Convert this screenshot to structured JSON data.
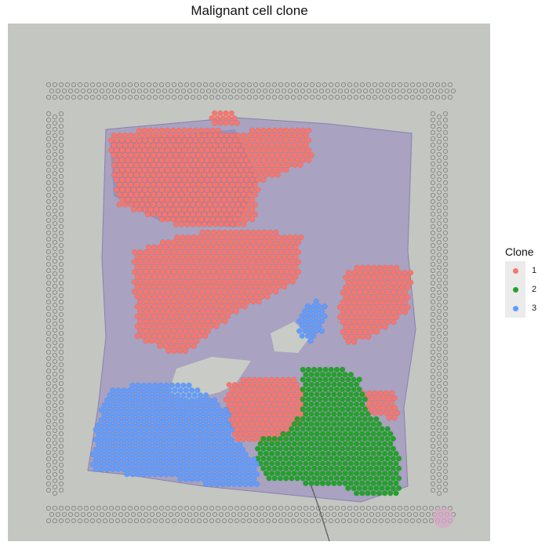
{
  "chart_data": {
    "type": "scatter",
    "title": "Malignant cell clone",
    "legend": {
      "title": "Clone",
      "position": "right",
      "entries": [
        {
          "label": "1",
          "color": "#F8766D"
        },
        {
          "label": "2",
          "color": "#22A22A"
        },
        {
          "label": "3",
          "color": "#619CFF"
        }
      ]
    },
    "background": "H&E tissue section image with fiducial spot grid",
    "series": [
      {
        "name": "1",
        "color": "#F8766D",
        "regions": [
          [
            [
              138,
              172
            ],
            [
              210,
              160
            ],
            [
              300,
              168
            ],
            [
              395,
              160
            ],
            [
              398,
              205
            ],
            [
              330,
              235
            ],
            [
              325,
              285
            ],
            [
              240,
              292
            ],
            [
              150,
              262
            ]
          ],
          [
            [
              270,
              140
            ],
            [
              300,
              138
            ],
            [
              305,
              160
            ],
            [
              270,
              160
            ]
          ],
          [
            [
              168,
              322
            ],
            [
              230,
              300
            ],
            [
              300,
              290
            ],
            [
              385,
              300
            ],
            [
              380,
              360
            ],
            [
              300,
              400
            ],
            [
              250,
              440
            ],
            [
              230,
              455
            ],
            [
              175,
              430
            ]
          ],
          [
            [
              440,
              345
            ],
            [
              480,
              335
            ],
            [
              525,
              345
            ],
            [
              522,
              395
            ],
            [
              485,
              425
            ],
            [
              440,
              440
            ],
            [
              430,
              400
            ]
          ],
          [
            [
              290,
              490
            ],
            [
              330,
              478
            ],
            [
              385,
              485
            ],
            [
              390,
              530
            ],
            [
              360,
              560
            ],
            [
              300,
              560
            ],
            [
              285,
              525
            ]
          ],
          [
            [
              460,
              495
            ],
            [
              505,
              502
            ],
            [
              508,
              535
            ],
            [
              470,
              530
            ]
          ]
        ]
      },
      {
        "name": "2",
        "color": "#22A22A",
        "regions": [
          [
            [
              385,
              470
            ],
            [
              430,
              465
            ],
            [
              460,
              485
            ],
            [
              470,
              525
            ],
            [
              500,
              550
            ],
            [
              510,
              590
            ],
            [
              512,
              630
            ],
            [
              470,
              635
            ],
            [
              430,
              620
            ],
            [
              370,
              615
            ],
            [
              340,
              610
            ],
            [
              325,
              580
            ],
            [
              330,
              560
            ],
            [
              365,
              550
            ],
            [
              385,
              525
            ]
          ]
        ]
      },
      {
        "name": "3",
        "color": "#619CFF",
        "regions": [
          [
            [
              135,
              500
            ],
            [
              190,
              485
            ],
            [
              240,
              490
            ],
            [
              290,
              520
            ],
            [
              300,
              560
            ],
            [
              330,
              590
            ],
            [
              330,
              622
            ],
            [
              280,
              622
            ],
            [
              220,
              610
            ],
            [
              160,
              605
            ],
            [
              115,
              600
            ],
            [
              122,
              545
            ]
          ],
          [
            [
              380,
              400
            ],
            [
              405,
              378
            ],
            [
              418,
              395
            ],
            [
              410,
              425
            ],
            [
              395,
              438
            ],
            [
              378,
              425
            ]
          ]
        ]
      }
    ]
  }
}
